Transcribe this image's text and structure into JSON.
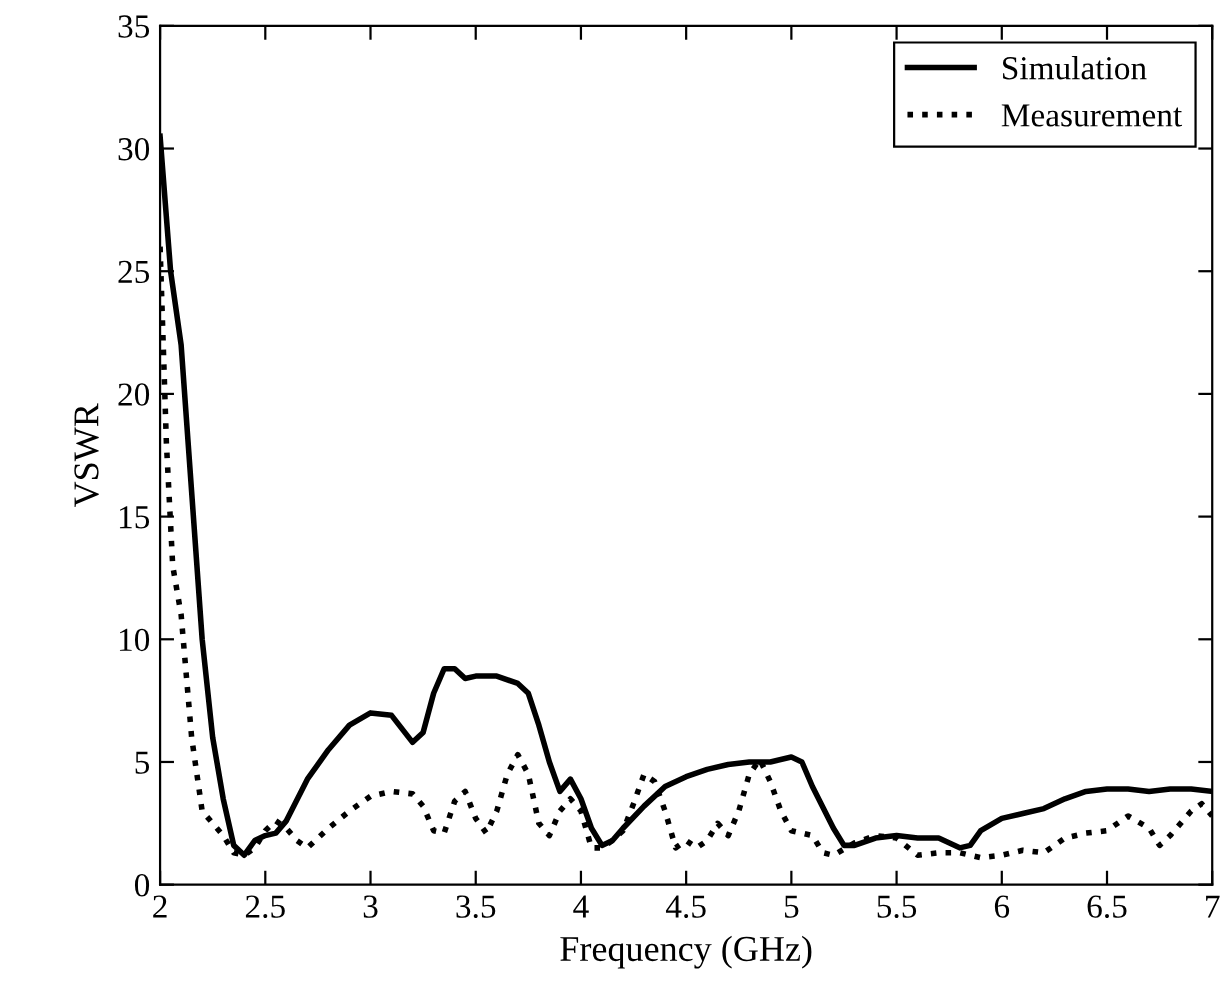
{
  "chart_data": {
    "type": "line",
    "xlabel": "Frequency (GHz)",
    "ylabel": "VSWR",
    "xlim": [
      2,
      7
    ],
    "ylim": [
      0,
      35
    ],
    "xticks": [
      2,
      2.5,
      3,
      3.5,
      4,
      4.5,
      5,
      5.5,
      6,
      6.5,
      7
    ],
    "yticks": [
      0,
      5,
      10,
      15,
      20,
      25,
      30,
      35
    ],
    "grid": false,
    "legend": "top right",
    "marker": "none",
    "series": [
      {
        "name": "Simulation",
        "color": "#000000",
        "line_style": "solid",
        "x": [
          2,
          2.05,
          2.1,
          2.15,
          2.2,
          2.25,
          2.3,
          2.35,
          2.4,
          2.45,
          2.5,
          2.55,
          2.6,
          2.7,
          2.8,
          2.9,
          3.0,
          3.1,
          3.2,
          3.25,
          3.3,
          3.35,
          3.4,
          3.45,
          3.5,
          3.6,
          3.7,
          3.75,
          3.8,
          3.85,
          3.9,
          3.95,
          4.0,
          4.05,
          4.1,
          4.15,
          4.2,
          4.3,
          4.4,
          4.5,
          4.6,
          4.7,
          4.8,
          4.9,
          5.0,
          5.05,
          5.1,
          5.2,
          5.25,
          5.3,
          5.4,
          5.5,
          5.6,
          5.7,
          5.8,
          5.85,
          5.9,
          6.0,
          6.1,
          6.2,
          6.3,
          6.4,
          6.5,
          6.6,
          6.7,
          6.8,
          6.9,
          7.0
        ],
        "values": [
          30.5,
          25,
          22,
          16,
          10,
          6,
          3.5,
          1.6,
          1.2,
          1.8,
          2,
          2.1,
          2.6,
          4.3,
          5.5,
          6.5,
          7,
          6.9,
          5.8,
          6.2,
          7.8,
          8.8,
          8.8,
          8.4,
          8.5,
          8.5,
          8.2,
          7.8,
          6.5,
          5,
          3.8,
          4.3,
          3.5,
          2.3,
          1.6,
          1.8,
          2.3,
          3.2,
          4,
          4.4,
          4.7,
          4.9,
          5,
          5,
          5.2,
          5,
          4,
          2.3,
          1.6,
          1.6,
          1.9,
          2,
          1.9,
          1.9,
          1.5,
          1.6,
          2.2,
          2.7,
          2.9,
          3.1,
          3.5,
          3.8,
          3.9,
          3.9,
          3.8,
          3.9,
          3.9,
          3.8
        ]
      },
      {
        "name": "Measurement",
        "color": "#000000",
        "line_style": "dotted",
        "x": [
          2,
          2.03,
          2.06,
          2.1,
          2.15,
          2.2,
          2.25,
          2.3,
          2.35,
          2.4,
          2.45,
          2.5,
          2.55,
          2.6,
          2.65,
          2.7,
          2.8,
          2.9,
          3.0,
          3.1,
          3.2,
          3.25,
          3.3,
          3.35,
          3.4,
          3.45,
          3.5,
          3.55,
          3.6,
          3.65,
          3.7,
          3.75,
          3.8,
          3.85,
          3.9,
          3.95,
          4.0,
          4.05,
          4.1,
          4.15,
          4.2,
          4.25,
          4.3,
          4.35,
          4.4,
          4.45,
          4.5,
          4.55,
          4.6,
          4.65,
          4.7,
          4.75,
          4.8,
          4.85,
          4.9,
          4.95,
          5.0,
          5.1,
          5.15,
          5.2,
          5.3,
          5.4,
          5.5,
          5.6,
          5.7,
          5.8,
          5.9,
          6.0,
          6.1,
          6.2,
          6.3,
          6.4,
          6.5,
          6.6,
          6.7,
          6.75,
          6.8,
          6.9,
          6.95,
          7.0
        ],
        "values": [
          26,
          18,
          13,
          11,
          6,
          3,
          2.5,
          2,
          1.3,
          1.2,
          1.5,
          2.2,
          2.6,
          2.3,
          1.8,
          1.5,
          2.3,
          3,
          3.6,
          3.8,
          3.7,
          3.2,
          2.2,
          2.1,
          3.4,
          3.8,
          2.7,
          2.1,
          3,
          4.5,
          5.3,
          4.5,
          2.5,
          2,
          3,
          3.5,
          3,
          1.5,
          1.5,
          1.8,
          2.2,
          3.3,
          4.5,
          4.2,
          3,
          1.5,
          1.8,
          1.5,
          1.8,
          2.5,
          2,
          3,
          4.5,
          5.1,
          4.2,
          3,
          2.2,
          2,
          1.3,
          1.2,
          1.7,
          2,
          1.9,
          1.2,
          1.3,
          1.3,
          1.1,
          1.2,
          1.4,
          1.3,
          1.9,
          2.1,
          2.2,
          2.8,
          2.3,
          1.6,
          2,
          3,
          3.3,
          2.8
        ]
      }
    ]
  }
}
